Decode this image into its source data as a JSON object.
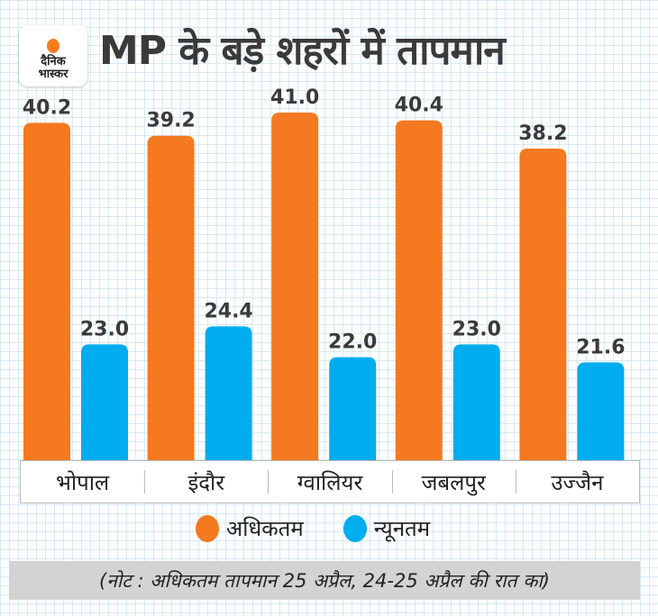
{
  "header": {
    "logo_line1": "दैनिक",
    "logo_line2": "भास्कर",
    "title": "MP के बड़े शहरों में तापमान"
  },
  "chart_data": {
    "type": "bar",
    "title": "MP के बड़े शहरों में तापमान",
    "xlabel": "",
    "ylabel": "",
    "ylim": [
      14,
      42
    ],
    "grid": false,
    "legend_position": "bottom",
    "categories": [
      "भोपाल",
      "इंदौर",
      "ग्वालियर",
      "जबलपुर",
      "उज्जैन"
    ],
    "series": [
      {
        "name": "अधिकतम",
        "color": "#f47920",
        "values": [
          40.2,
          39.2,
          41.0,
          40.4,
          38.2
        ],
        "labels": [
          "40.2",
          "39.2",
          "41.0",
          "40.4",
          "38.2"
        ]
      },
      {
        "name": "न्यूनतम",
        "color": "#00adee",
        "values": [
          23.0,
          24.4,
          22.0,
          23.0,
          21.6
        ],
        "labels": [
          "23.0",
          "24.4",
          "22.0",
          "23.0",
          "21.6"
        ]
      }
    ]
  },
  "note": "(नोट : अधिकतम तापमान 25 अप्रैल, 24-25 अप्रैल की रात का)"
}
